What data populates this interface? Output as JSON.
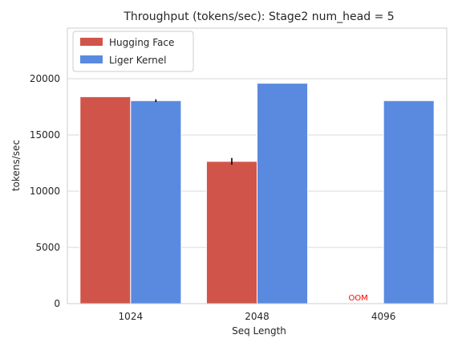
{
  "chart_data": {
    "type": "bar",
    "title": "Throughput (tokens/sec): Stage2 num_head = 5",
    "xlabel": "Seq Length",
    "ylabel": "tokens/sec",
    "categories": [
      "1024",
      "2048",
      "4096"
    ],
    "ylim": [
      0,
      24500
    ],
    "yticks": [
      0,
      5000,
      10000,
      15000,
      20000
    ],
    "ytick_labels": [
      "0",
      "5000",
      "10000",
      "15000",
      "20000"
    ],
    "grid": true,
    "legend_position": "top-left",
    "series": [
      {
        "name": "Hugging Face",
        "color": "#d1544a",
        "values": [
          18400,
          12650,
          null
        ],
        "error": [
          0,
          300,
          null
        ]
      },
      {
        "name": "Liger Kernel",
        "color": "#5a8ae0",
        "values": [
          18050,
          19600,
          18050
        ],
        "error": [
          120,
          0,
          0
        ]
      }
    ],
    "annotations": [
      {
        "text": "OOM",
        "category": "4096",
        "series": "Hugging Face",
        "color": "#ff0000"
      }
    ]
  }
}
